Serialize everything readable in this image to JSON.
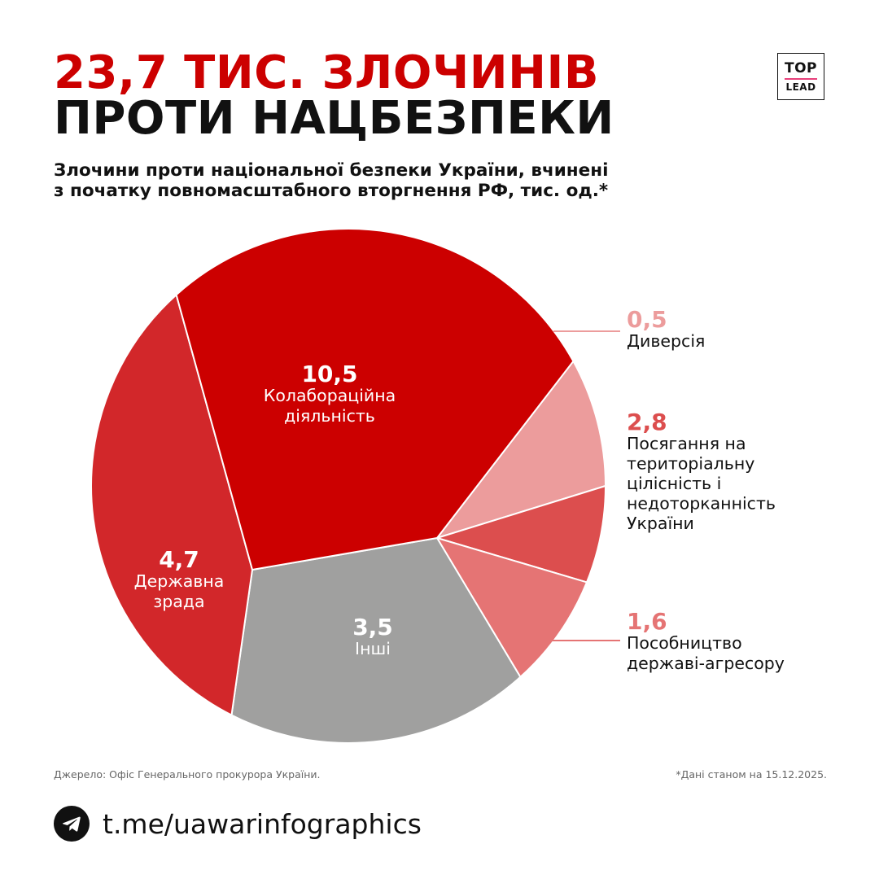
{
  "header": {
    "title_line1": "23,7 ТИС. ЗЛОЧИНІВ",
    "title_line2": "ПРОТИ НАЦБЕЗПЕКИ",
    "subtitle_line1": "Злочини проти національної безпеки України, вчинені",
    "subtitle_line2": "з початку повномасштабного вторгнення РФ, тис. од.*"
  },
  "logo": {
    "top": "TOP",
    "bottom": "LEAD",
    "accent": "#e8407a"
  },
  "chart_data": {
    "type": "pie",
    "title": "Злочини проти національної безпеки України, вчинені з початку повномасштабного вторгнення РФ, тис. од.*",
    "total": "23,7",
    "slices": [
      {
        "value": 0.5,
        "value_label": "0,5",
        "label_lines": [
          "Диверсія"
        ],
        "color": "#ec9c9c"
      },
      {
        "value": 2.8,
        "value_label": "2,8",
        "label_lines": [
          "Посягання на",
          "територіальну",
          "цілісність і",
          "недоторканність",
          "України"
        ],
        "color": "#dc4e4e"
      },
      {
        "value": 1.6,
        "value_label": "1,6",
        "label_lines": [
          "Пособництво",
          "державі-агресору"
        ],
        "color": "#e57474"
      },
      {
        "value": 3.5,
        "value_label": "3,5",
        "label_lines": [
          "Інші"
        ],
        "color": "#a0a09f"
      },
      {
        "value": 4.7,
        "value_label": "4,7",
        "label_lines": [
          "Державна",
          "зрада"
        ],
        "color": "#d2272a"
      },
      {
        "value": 10.5,
        "value_label": "10,5",
        "label_lines": [
          "Колабораційна",
          "діяльність"
        ],
        "color": "#cc0000"
      }
    ]
  },
  "footer": {
    "source": "Джерело: Офіс Генерального прокурора України.",
    "note": "*Дані станом на 15.12.2025.",
    "url": "t.me/uawarinfographics",
    "icon": "telegram-icon"
  }
}
